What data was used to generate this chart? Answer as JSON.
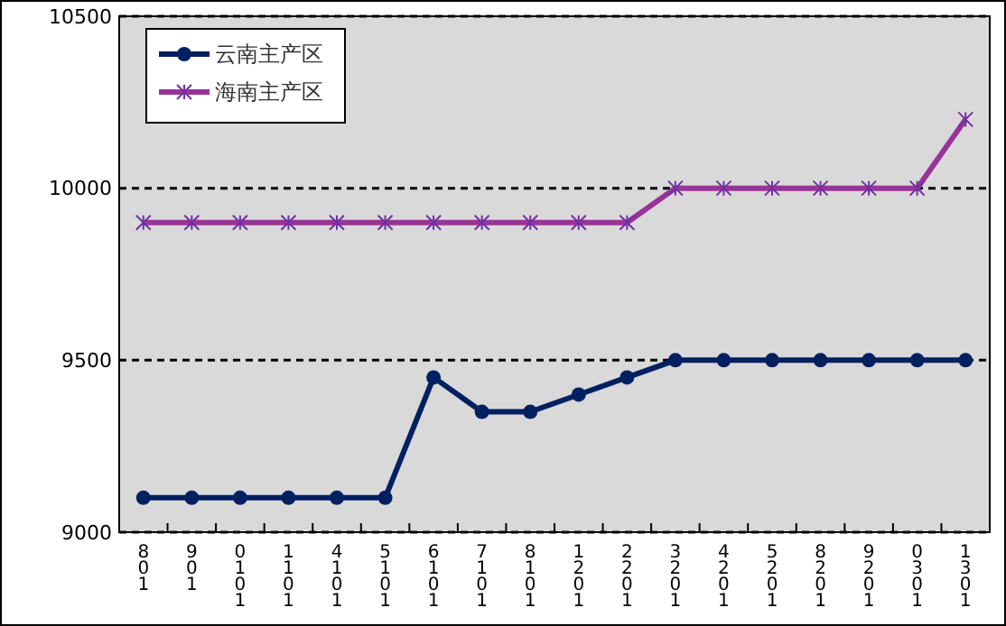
{
  "chart_data": {
    "type": "line",
    "categories": [
      "801",
      "901",
      "0101",
      "1101",
      "4101",
      "5101",
      "6101",
      "7101",
      "8101",
      "1201",
      "2201",
      "3201",
      "4201",
      "5201",
      "8201",
      "9201",
      "0301",
      "1301"
    ],
    "series": [
      {
        "name": "云南主产区",
        "color": "#002060",
        "marker": "circle",
        "values": [
          9100,
          9100,
          9100,
          9100,
          9100,
          9100,
          9450,
          9350,
          9350,
          9400,
          9450,
          9500,
          9500,
          9500,
          9500,
          9500,
          9500,
          9500
        ]
      },
      {
        "name": "海南主产区",
        "color": "#993399",
        "marker": "cross",
        "values": [
          9900,
          9900,
          9900,
          9900,
          9900,
          9900,
          9900,
          9900,
          9900,
          9900,
          9900,
          10000,
          10000,
          10000,
          10000,
          10000,
          10000,
          10200
        ]
      }
    ],
    "ylim": [
      9000,
      10500
    ],
    "yticks": [
      9000,
      9500,
      10000,
      10500
    ],
    "grid": "y",
    "legend": "top left"
  }
}
